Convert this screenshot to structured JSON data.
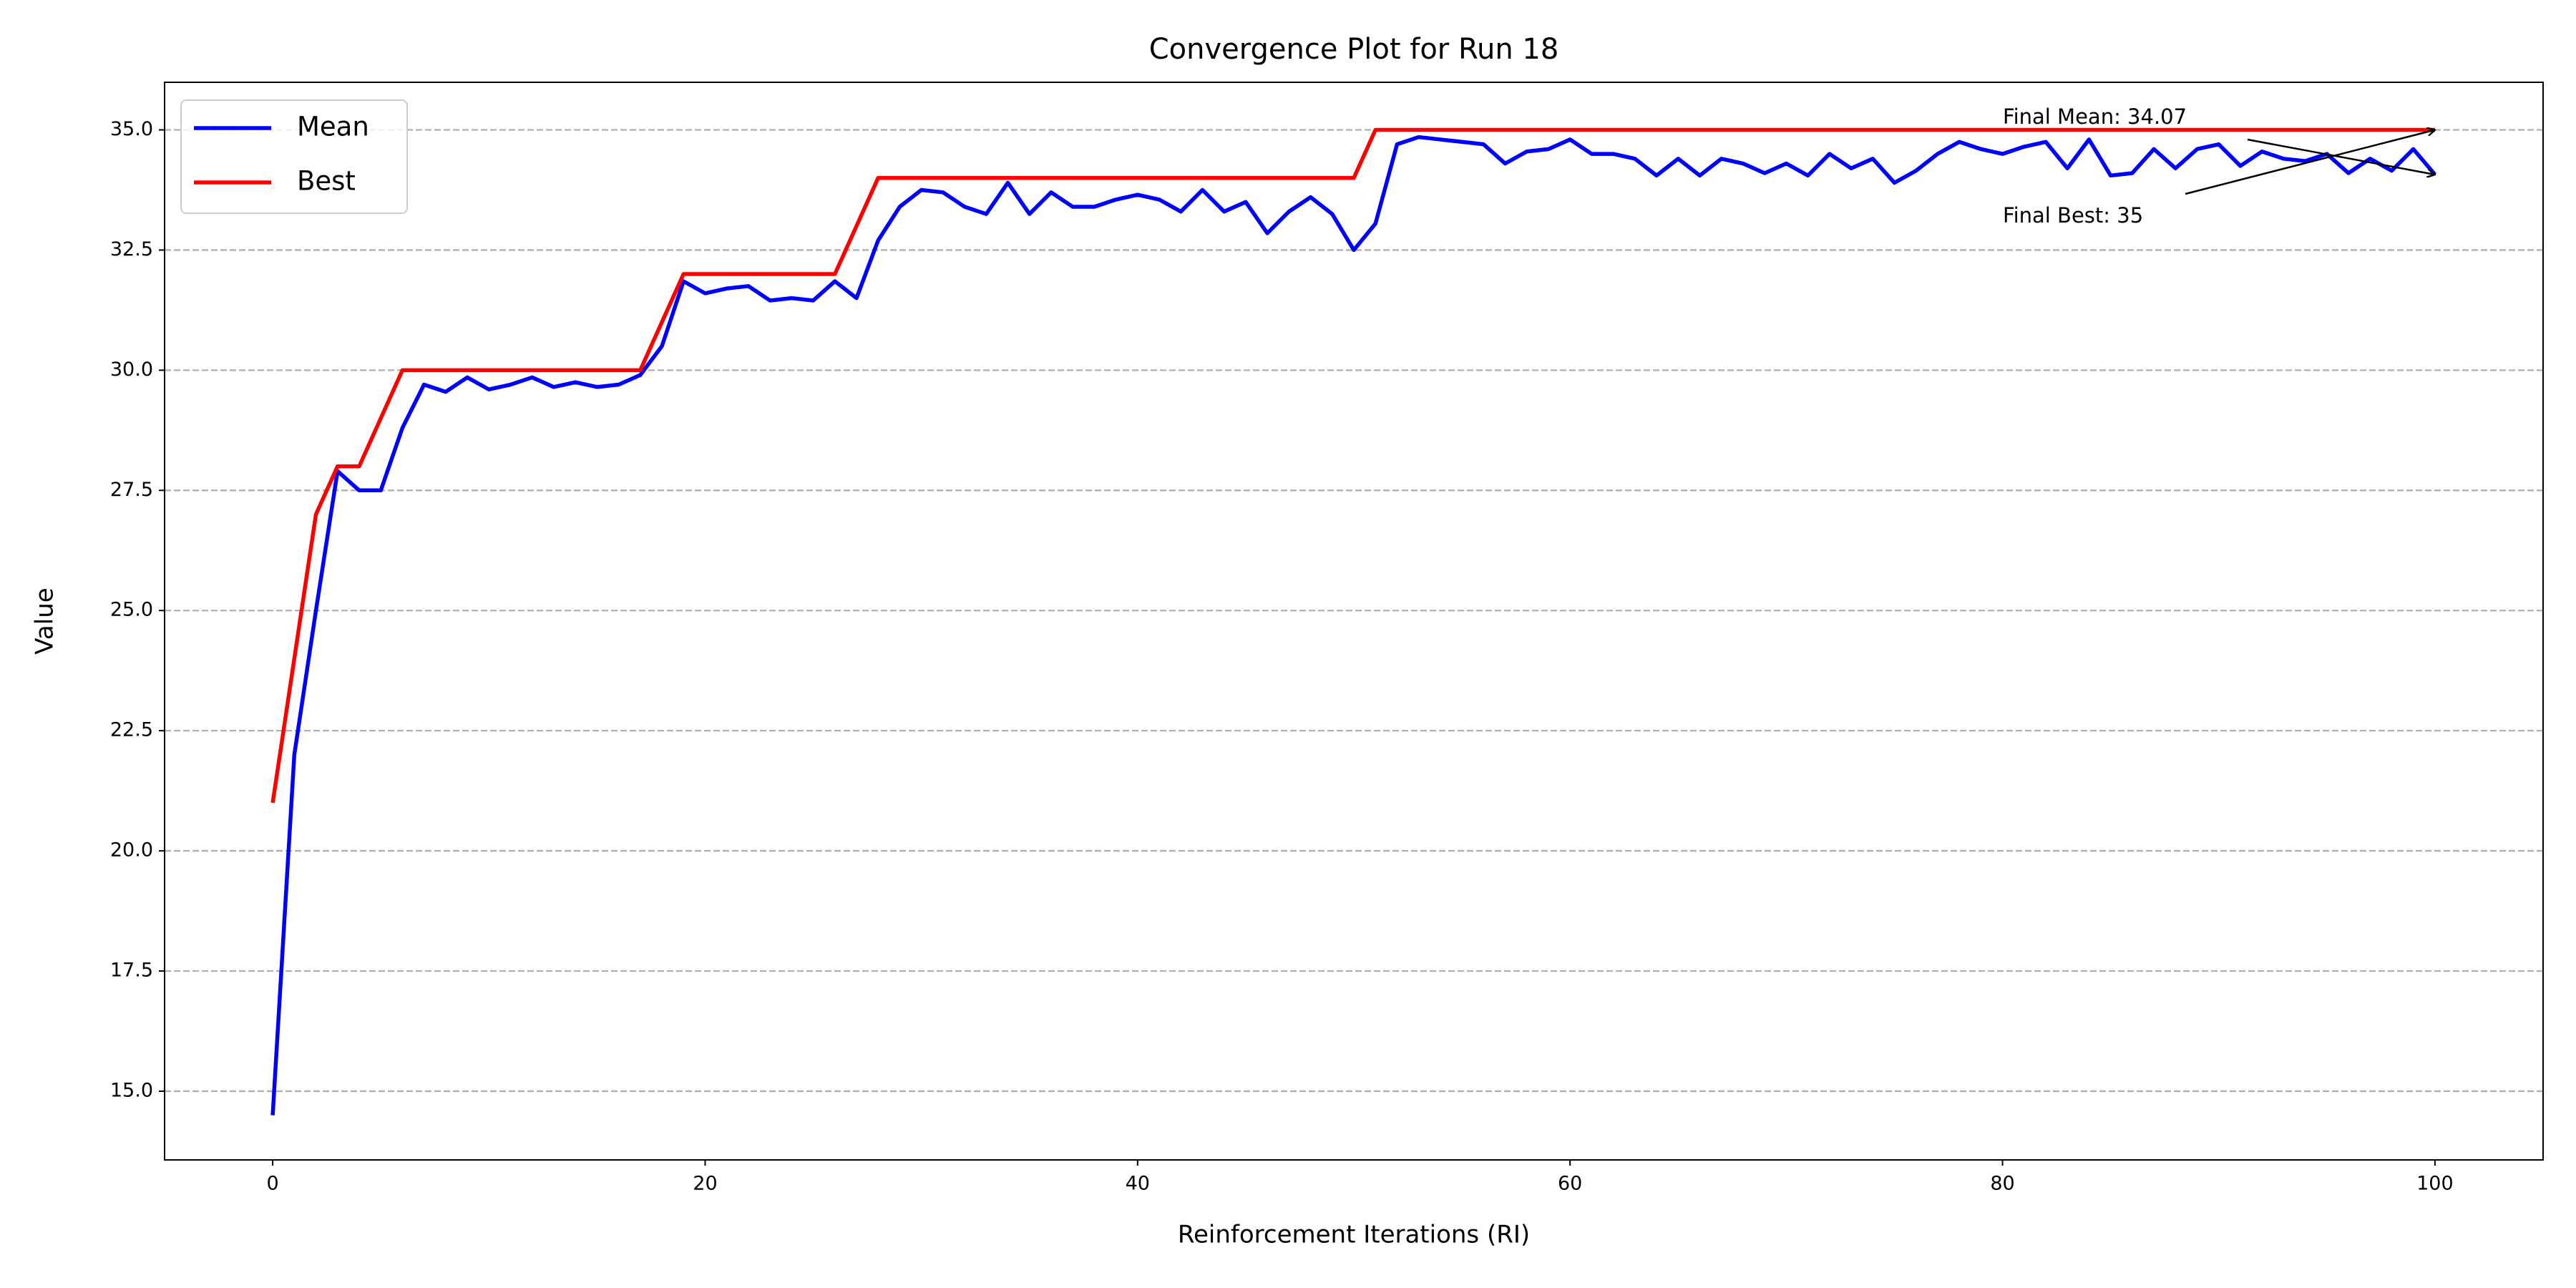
{
  "chart_data": {
    "type": "line",
    "title": "Convergence Plot for Run 18",
    "xlabel": "Reinforcement Iterations (RI)",
    "ylabel": "Value",
    "x": [
      0,
      1,
      2,
      3,
      4,
      5,
      6,
      7,
      8,
      9,
      10,
      11,
      12,
      13,
      14,
      15,
      16,
      17,
      18,
      19,
      20,
      21,
      22,
      23,
      24,
      25,
      26,
      27,
      28,
      29,
      30,
      31,
      32,
      33,
      34,
      35,
      36,
      37,
      38,
      39,
      40,
      41,
      42,
      43,
      44,
      45,
      46,
      47,
      48,
      49,
      50,
      51,
      52,
      53,
      54,
      55,
      56,
      57,
      58,
      59,
      60,
      61,
      62,
      63,
      64,
      65,
      66,
      67,
      68,
      69,
      70,
      71,
      72,
      73,
      74,
      75,
      76,
      77,
      78,
      79,
      80,
      81,
      82,
      83,
      84,
      85,
      86,
      87,
      88,
      89,
      90,
      91,
      92,
      93,
      94,
      95,
      96,
      97,
      98,
      99,
      100
    ],
    "series": [
      {
        "name": "Mean",
        "color": "#0000ff",
        "values": [
          14.5,
          22.0,
          25.0,
          27.9,
          27.5,
          27.5,
          28.8,
          29.7,
          29.55,
          29.85,
          29.6,
          29.7,
          29.85,
          29.65,
          29.75,
          29.65,
          29.7,
          29.9,
          30.5,
          31.85,
          31.6,
          31.7,
          31.75,
          31.45,
          31.5,
          31.45,
          31.85,
          31.5,
          32.7,
          33.4,
          33.75,
          33.7,
          33.4,
          33.25,
          33.9,
          33.25,
          33.7,
          33.4,
          33.4,
          33.55,
          33.65,
          33.55,
          33.3,
          33.75,
          33.3,
          33.5,
          32.85,
          33.3,
          33.6,
          33.25,
          32.5,
          33.05,
          34.7,
          34.85,
          34.8,
          34.75,
          34.7,
          34.3,
          34.55,
          34.6,
          34.8,
          34.5,
          34.5,
          34.4,
          34.05,
          34.4,
          34.05,
          34.4,
          34.3,
          34.1,
          34.3,
          34.05,
          34.5,
          34.2,
          34.4,
          33.9,
          34.15,
          34.5,
          34.75,
          34.6,
          34.5,
          34.65,
          34.75,
          34.2,
          34.8,
          34.05,
          34.1,
          34.6,
          34.2,
          34.6,
          34.7,
          34.25,
          34.55,
          34.4,
          34.35,
          34.5,
          34.1,
          34.4,
          34.15,
          34.6,
          34.07
        ]
      },
      {
        "name": "Best",
        "color": "#ff0000",
        "values": [
          21,
          24,
          27,
          28,
          28,
          29,
          30,
          30,
          30,
          30,
          30,
          30,
          30,
          30,
          30,
          30,
          30,
          30,
          31,
          32,
          32,
          32,
          32,
          32,
          32,
          32,
          32,
          33,
          34,
          34,
          34,
          34,
          34,
          34,
          34,
          34,
          34,
          34,
          34,
          34,
          34,
          34,
          34,
          34,
          34,
          34,
          34,
          34,
          34,
          34,
          34,
          35,
          35,
          35,
          35,
          35,
          35,
          35,
          35,
          35,
          35,
          35,
          35,
          35,
          35,
          35,
          35,
          35,
          35,
          35,
          35,
          35,
          35,
          35,
          35,
          35,
          35,
          35,
          35,
          35,
          35,
          35,
          35,
          35,
          35,
          35,
          35,
          35,
          35,
          35,
          35,
          35,
          35,
          35,
          35,
          35,
          35,
          35,
          35,
          35,
          35
        ]
      }
    ],
    "annotations": [
      {
        "text": "Final Mean: 34.07"
      },
      {
        "text": "Final Best: 35"
      }
    ],
    "xlim": [
      -5,
      105
    ],
    "xticks": [
      0,
      20,
      40,
      60,
      80,
      100
    ],
    "ylim": [
      13.57,
      35.99
    ],
    "yticks": [
      {
        "value": 15,
        "label": "15.0"
      },
      {
        "value": 17.5,
        "label": "17.5"
      },
      {
        "value": 20,
        "label": "20.0"
      },
      {
        "value": 22.5,
        "label": "22.5"
      },
      {
        "value": 25,
        "label": "25.0"
      },
      {
        "value": 27.5,
        "label": "27.5"
      },
      {
        "value": 30,
        "label": "30.0"
      },
      {
        "value": 32.5,
        "label": "32.5"
      },
      {
        "value": 35,
        "label": "35.0"
      }
    ],
    "grid": true,
    "legend": "upper left"
  }
}
